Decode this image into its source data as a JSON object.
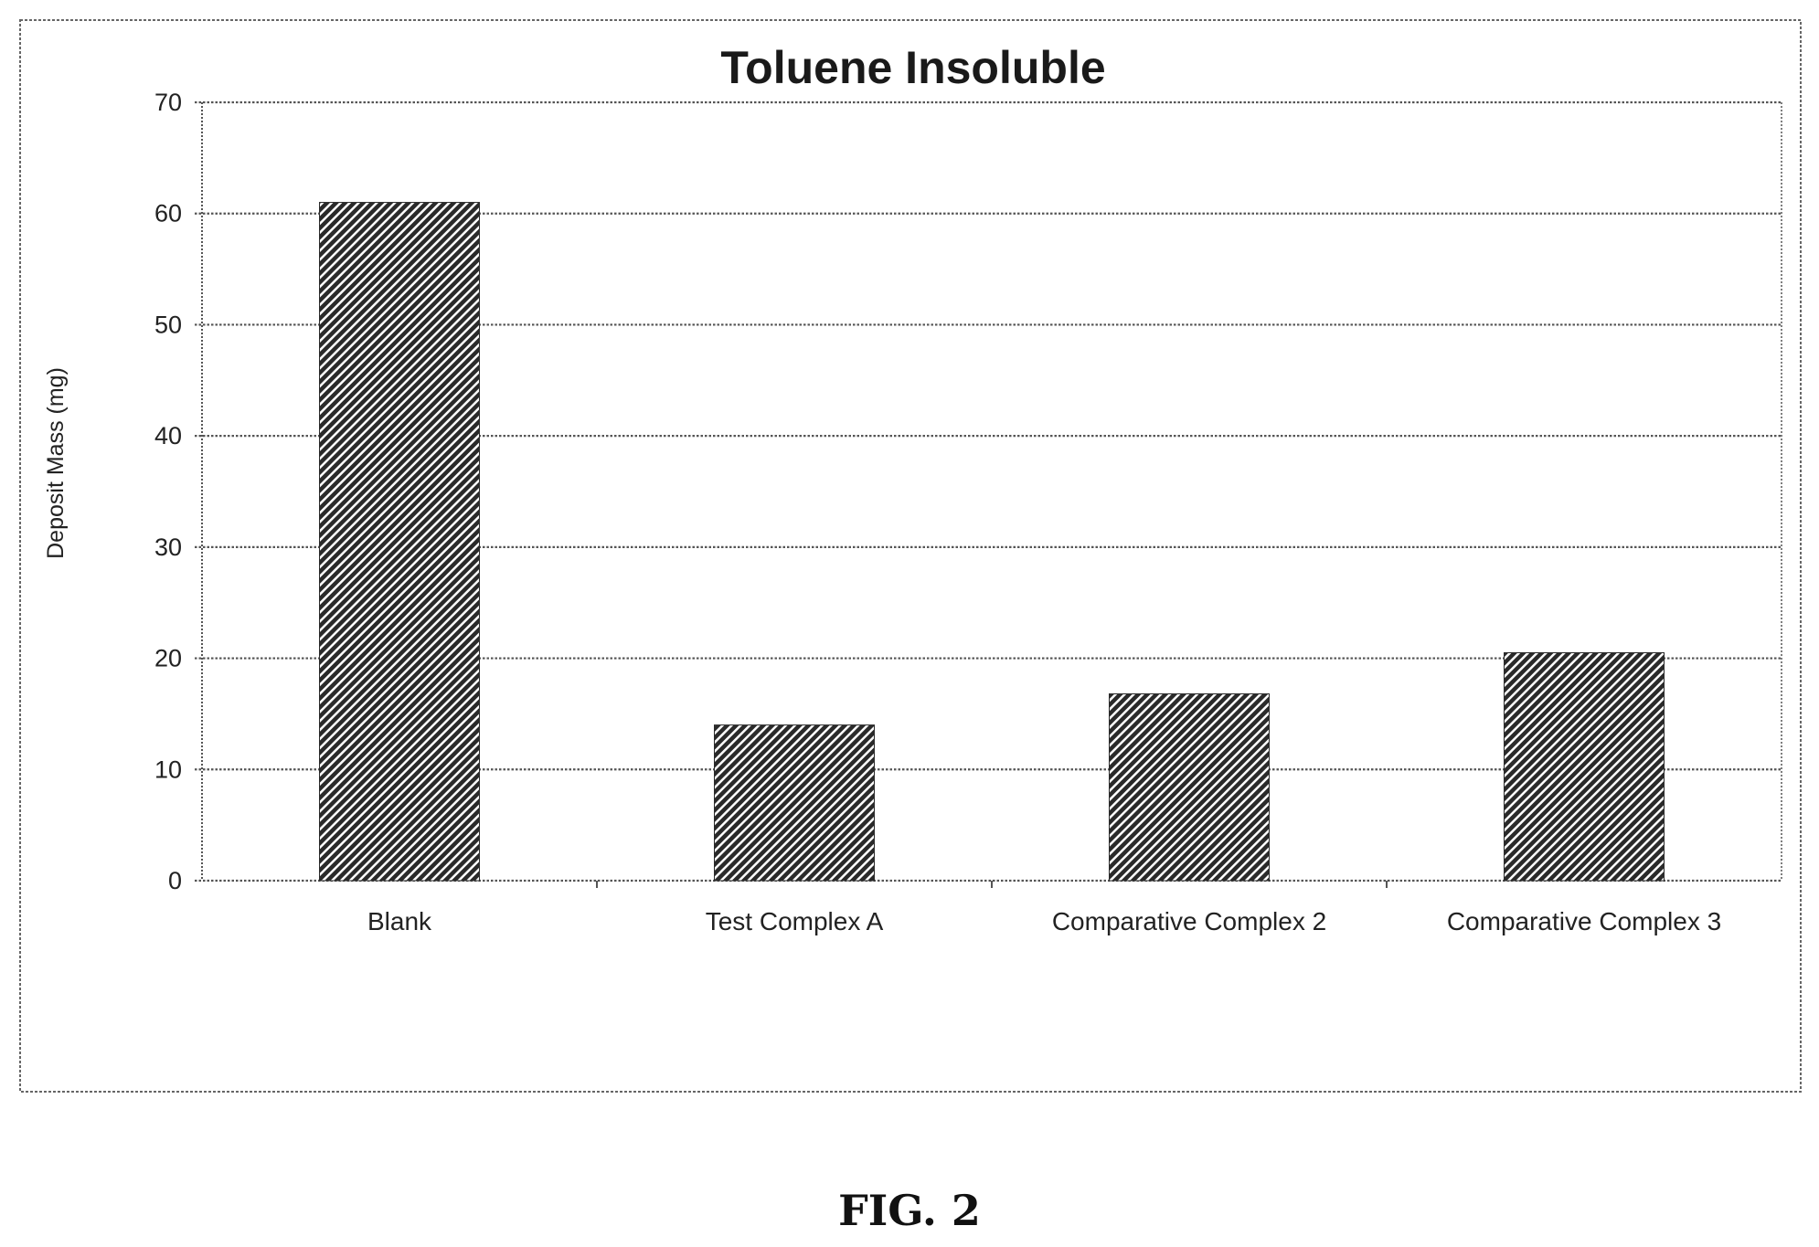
{
  "chart_data": {
    "type": "bar",
    "title": "Toluene Insoluble",
    "xlabel": "",
    "ylabel": "Deposit Mass (mg)",
    "categories": [
      "Blank",
      "Test Complex A",
      "Comparative Complex 2",
      "Comparative Complex 3"
    ],
    "values": [
      61,
      14,
      16.8,
      20.5
    ],
    "ylim": [
      0,
      70
    ],
    "yticks": [
      0,
      10,
      20,
      30,
      40,
      50,
      60,
      70
    ],
    "grid": true,
    "legend": "none",
    "bar_pattern": "diagonal-hatch",
    "colors": {
      "bar_dark": "#2a2a2a",
      "bar_light": "#ffffff",
      "grid": "#555555",
      "text": "#222222",
      "frame": "#666666"
    }
  },
  "caption": "FIG. 2"
}
